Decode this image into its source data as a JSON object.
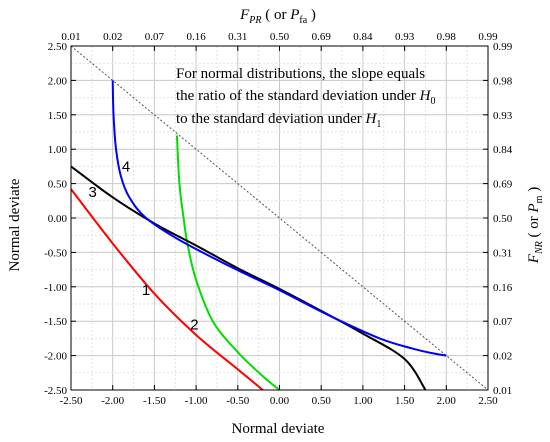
{
  "chart_data": {
    "type": "line",
    "xlabel": "Normal deviate",
    "ylabel": "Normal deviate",
    "top_axis_label": {
      "main": "F",
      "sub": "PR",
      "paren_open": " ( or ",
      "paren_main": "P",
      "paren_sub": "fa",
      "paren_close": " )"
    },
    "right_axis_label": {
      "main": "F",
      "sub": "NR",
      "paren_open": " ( or ",
      "paren_main": "P",
      "paren_sub": "m",
      "paren_close": " )"
    },
    "xlim": [
      -2.5,
      2.5
    ],
    "ylim": [
      -2.5,
      2.5
    ],
    "grid": true,
    "x_ticks": [
      "-2.50",
      "-2.00",
      "-1.50",
      "-1.00",
      "-0.50",
      "0.00",
      "0.50",
      "1.00",
      "1.50",
      "2.00",
      "2.50"
    ],
    "y_ticks": [
      "-2.50",
      "-2.00",
      "-1.50",
      "-1.00",
      "-0.50",
      "0.00",
      "0.50",
      "1.00",
      "1.50",
      "2.00",
      "2.50"
    ],
    "top_ticks": [
      "0.01",
      "0.02",
      "0.07",
      "0.16",
      "0.31",
      "0.50",
      "0.69",
      "0.84",
      "0.93",
      "0.98",
      "0.99"
    ],
    "right_ticks": [
      "0.01",
      "0.02",
      "0.07",
      "0.16",
      "0.31",
      "0.50",
      "0.69",
      "0.84",
      "0.93",
      "0.98",
      "0.99"
    ],
    "annotation": {
      "line1": "For normal distributions, the slope equals",
      "line2": "the ratio of the standard deviation under ",
      "line2_var": "H",
      "line2_sub": "0",
      "line3": "to the standard deviation under ",
      "line3_var": "H",
      "line3_sub": "1"
    },
    "series": [
      {
        "label": "1",
        "color": "#ff0000",
        "label_pos": [
          -1.6,
          -1.05
        ],
        "x": [
          -2.5,
          -2.0,
          -1.5,
          -1.0,
          -0.5,
          -0.2
        ],
        "y": [
          0.42,
          -0.37,
          -1.1,
          -1.7,
          -2.2,
          -2.5
        ]
      },
      {
        "label": "2",
        "color": "#00dd00",
        "label_pos": [
          -1.02,
          -1.55
        ],
        "x": [
          -1.23,
          -1.2,
          -1.15,
          -1.1,
          -1.0,
          -0.8,
          -0.5,
          -0.2,
          0.0
        ],
        "y": [
          1.2,
          0.5,
          0.0,
          -0.4,
          -0.9,
          -1.5,
          -1.95,
          -2.3,
          -2.5
        ]
      },
      {
        "label": "3",
        "color": "#000000",
        "label_pos": [
          -2.24,
          0.38
        ],
        "x": [
          -2.5,
          -2.0,
          -1.5,
          -1.0,
          -0.5,
          0.0,
          0.5,
          1.0,
          1.5,
          1.75
        ],
        "y": [
          0.75,
          0.3,
          -0.08,
          -0.4,
          -0.73,
          -1.03,
          -1.35,
          -1.68,
          -2.05,
          -2.5
        ]
      },
      {
        "label": "4",
        "color": "#0000ff",
        "label_pos": [
          -1.84,
          0.75
        ],
        "x": [
          -2.0,
          -1.99,
          -1.96,
          -1.9,
          -1.8,
          -1.6,
          -1.2,
          -0.6,
          0.0,
          0.6,
          1.2,
          1.6,
          1.85,
          2.0
        ],
        "y": [
          2.0,
          1.5,
          1.0,
          0.6,
          0.3,
          0.0,
          -0.32,
          -0.7,
          -1.05,
          -1.42,
          -1.75,
          -1.9,
          -1.97,
          -2.0
        ]
      }
    ],
    "reference_line": {
      "x": [
        -2.5,
        2.5
      ],
      "y": [
        2.5,
        -2.5
      ],
      "color": "#555555",
      "style": "dotted"
    }
  }
}
